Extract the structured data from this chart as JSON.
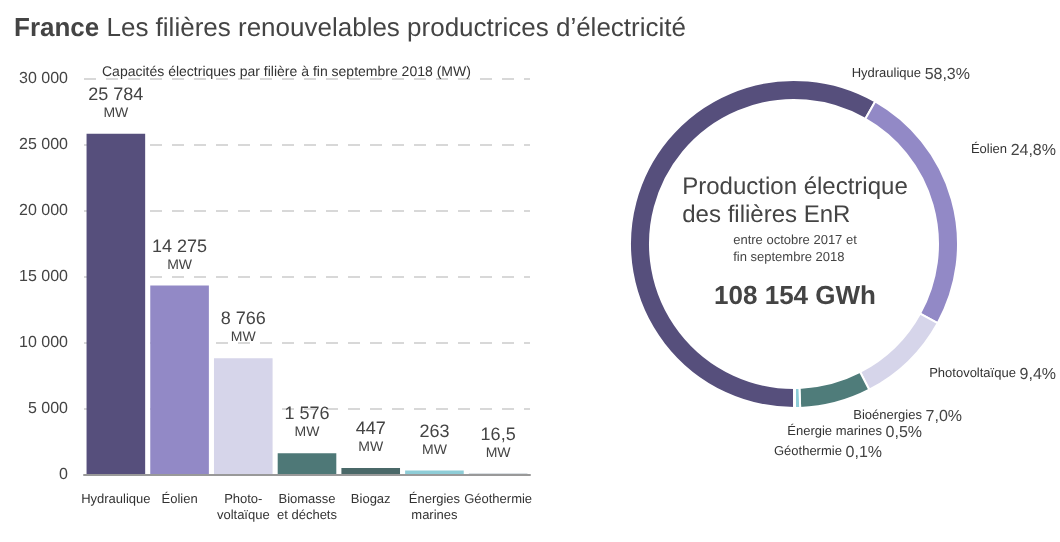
{
  "chart_data": [
    {
      "type": "bar",
      "title": "France Les filières renouvelables productrices d’électricité",
      "subtitle": "Capacités électriques par filière à fin septembre 2018 (MW)",
      "categories": [
        "Hydraulique",
        "Éolien",
        "Photo-\nvoltaïque",
        "Biomasse\net déchets",
        "Biogaz",
        "Énergies\nmarines",
        "Géothermie"
      ],
      "values": [
        25784,
        14275,
        8766,
        1576,
        447,
        263,
        16.5
      ],
      "colors": [
        "#564f7c",
        "#9289c6",
        "#d6d5ea",
        "#4e7877",
        "#4a6868",
        "#8ecdd7",
        "#6c7f8e"
      ],
      "value_labels": [
        "25 784\nMW",
        "14 275\nMW",
        "8 766\nMW",
        "1 576\nMW",
        "447\nMW",
        "263\nMW",
        "16,5\nMW"
      ],
      "ylim": [
        0,
        30000
      ],
      "yticks": [
        {
          "value": 0,
          "label": "0"
        },
        {
          "value": 5000,
          "label": "5 000"
        },
        {
          "value": 10000,
          "label": "10 000"
        },
        {
          "value": 15000,
          "label": "15 000"
        },
        {
          "value": 20000,
          "label": "20 000"
        },
        {
          "value": 25000,
          "label": "25 000"
        },
        {
          "value": 30000,
          "label": "30 000"
        }
      ],
      "grid": "y"
    },
    {
      "type": "donut",
      "categories": [
        "Hydraulique",
        "Éolien",
        "Photovoltaïque",
        "Bioénergies",
        "Énergie marines",
        "Géothermie"
      ],
      "values": [
        58.3,
        24.8,
        9.4,
        7.0,
        0.5,
        0.1
      ],
      "colors": [
        "#564f7c",
        "#9289c6",
        "#d6d5ea",
        "#4f7c7a",
        "#8ecdd7",
        "#555566"
      ],
      "value_labels": [
        "58,3%",
        "24,8%",
        "9,4%",
        "7,0%",
        "0,5%",
        "0,1%"
      ],
      "annotations": [
        "Production électrique\ndes filières EnR",
        "entre octobre 2017 et\nfin septembre 2018",
        "108 154 GWh"
      ]
    }
  ]
}
